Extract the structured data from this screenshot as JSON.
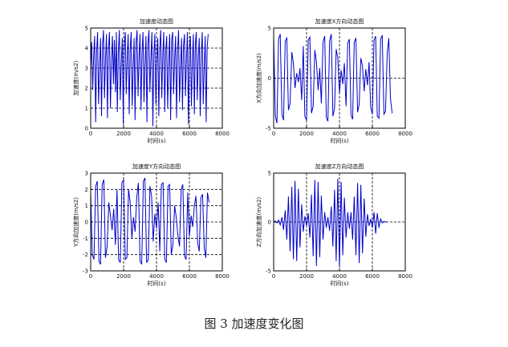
{
  "caption": "图 3  加速度变化图",
  "chart_data": [
    {
      "type": "line",
      "title": "加速度动态图",
      "xlabel": "时间(s)",
      "ylabel": "加速度(m/s2)",
      "xlim": [
        0,
        8000
      ],
      "ylim": [
        0,
        5
      ],
      "xticks": [
        0,
        2000,
        4000,
        6000,
        8000
      ],
      "yticks": [
        0,
        1,
        2,
        3,
        4,
        5
      ],
      "xtick_labels": [
        "0",
        "2000",
        "4000",
        "6000",
        "8000"
      ],
      "ytick_labels": [
        "0",
        "1",
        "2",
        "3",
        "4",
        "5"
      ],
      "grid": "dashed",
      "color": "#0000cc",
      "series": [
        {
          "x": [
            0,
            60,
            120,
            180,
            240,
            300,
            360,
            420,
            480,
            540,
            600,
            660,
            720,
            780,
            840,
            900,
            960,
            1020,
            1080,
            1140,
            1200,
            1260,
            1320,
            1380,
            1440,
            1500,
            1560,
            1620,
            1680,
            1740,
            1800,
            1860,
            1920,
            1980,
            2040,
            2100,
            2160,
            2220,
            2280,
            2340,
            2400,
            2460,
            2520,
            2580,
            2640,
            2700,
            2760,
            2820,
            2880,
            2940,
            3000,
            3060,
            3120,
            3180,
            3240,
            3300,
            3360,
            3420,
            3480,
            3540,
            3600,
            3660,
            3720,
            3780,
            3840,
            3900,
            3960,
            4020,
            4080,
            4140,
            4200,
            4260,
            4320,
            4380,
            4440,
            4500,
            4560,
            4620,
            4680,
            4740,
            4800,
            4860,
            4920,
            4980,
            5040,
            5100,
            5160,
            5220,
            5280,
            5340,
            5400,
            5460,
            5520,
            5580,
            5640,
            5700,
            5760,
            5820,
            5880,
            5940,
            6000,
            6060,
            6120,
            6180,
            6240,
            6300,
            6360,
            6420,
            6480,
            6540,
            6600,
            6660,
            6720,
            6780,
            6840,
            6900,
            6960,
            7020,
            7080,
            7140
          ],
          "y": [
            3.0,
            4.3,
            1.9,
            3.6,
            4.6,
            0.3,
            3.8,
            4.8,
            1.2,
            3.1,
            4.5,
            0.6,
            4.2,
            4.9,
            1.5,
            3.4,
            4.7,
            0.5,
            3.9,
            4.8,
            1.0,
            3.3,
            4.6,
            2.2,
            4.4,
            1.8,
            4.8,
            0.8,
            3.7,
            4.9,
            1.4,
            3.2,
            4.5,
            0.2,
            4.1,
            4.8,
            1.7,
            3.5,
            4.7,
            0.7,
            3.9,
            4.8,
            1.1,
            3.0,
            4.5,
            0.4,
            4.3,
            4.9,
            1.6,
            3.6,
            4.7,
            0.9,
            3.8,
            4.8,
            1.3,
            3.1,
            4.6,
            0.3,
            4.2,
            4.9,
            1.8,
            3.4,
            4.8,
            0.1,
            3.7,
            4.7,
            1.2,
            3.3,
            4.5,
            0.6,
            4.0,
            4.9,
            1.5,
            3.6,
            4.8,
            0.8,
            3.9,
            4.6,
            1.0,
            3.2,
            4.7,
            0.4,
            4.4,
            4.8,
            1.7,
            3.5,
            4.6,
            0.5,
            3.8,
            4.9,
            1.3,
            3.0,
            4.5,
            0.9,
            4.1,
            4.7,
            1.6,
            3.4,
            4.8,
            0.2,
            3.9,
            4.6,
            1.1,
            3.3,
            4.7,
            0.7,
            4.2,
            4.8,
            1.4,
            3.6,
            4.5,
            0.6,
            3.7,
            4.8,
            1.2,
            3.1,
            4.6,
            0.3,
            4.0,
            4.7
          ]
        }
      ]
    },
    {
      "type": "line",
      "title": "加速度X方向动态图",
      "xlabel": "时间(s)",
      "ylabel": "X方向加速度(m/s2)",
      "xlim": [
        0,
        8000
      ],
      "ylim": [
        -5,
        5
      ],
      "xticks": [
        0,
        2000,
        4000,
        6000,
        8000
      ],
      "yticks": [
        -5,
        0,
        5
      ],
      "xtick_labels": [
        "0",
        "2000",
        "4000",
        "6000",
        "8000"
      ],
      "ytick_labels": [
        "-5",
        "0",
        "5"
      ],
      "grid": "dashed",
      "color": "#0000cc",
      "series": [
        {
          "x": [
            0,
            100,
            200,
            300,
            400,
            500,
            600,
            700,
            800,
            900,
            1000,
            1100,
            1200,
            1300,
            1400,
            1500,
            1600,
            1700,
            1800,
            1900,
            2000,
            2100,
            2200,
            2300,
            2400,
            2500,
            2600,
            2700,
            2800,
            2900,
            3000,
            3100,
            3200,
            3300,
            3400,
            3500,
            3600,
            3700,
            3800,
            3900,
            4000,
            4100,
            4200,
            4300,
            4400,
            4500,
            4600,
            4700,
            4800,
            4900,
            5000,
            5100,
            5200,
            5300,
            5400,
            5500,
            5600,
            5700,
            5800,
            5900,
            6000,
            6100,
            6200,
            6300,
            6400,
            6500,
            6600,
            6700,
            6800,
            6900,
            7000,
            7100,
            7200
          ],
          "y": [
            4.2,
            -3.8,
            -4.5,
            3.9,
            4.4,
            -3.6,
            -4.2,
            3.7,
            4.0,
            -3.2,
            -2.5,
            2.6,
            1.5,
            -1.0,
            0.5,
            -0.4,
            1.0,
            -2.2,
            3.2,
            -3.8,
            -4.2,
            3.8,
            4.1,
            -3.5,
            -2.8,
            2.8,
            1.6,
            -1.2,
            1.0,
            -2.5,
            3.6,
            4.2,
            -3.9,
            -4.3,
            3.7,
            4.4,
            -3.8,
            -3.0,
            2.9,
            2.0,
            -1.5,
            0.8,
            -0.6,
            1.5,
            -2.8,
            3.5,
            3.9,
            -3.7,
            -4.1,
            3.6,
            4.0,
            -3.4,
            -2.6,
            2.0,
            1.2,
            -1.3,
            0.9,
            -0.7,
            1.6,
            -2.9,
            -3.6,
            3.8,
            4.2,
            -3.8,
            -4.0,
            3.9,
            4.3,
            -3.6,
            -3.3,
            2.5,
            4.0,
            -2.0,
            -3.5
          ]
        }
      ]
    },
    {
      "type": "line",
      "title": "加速度Y方向动态图",
      "xlabel": "时间(s)",
      "ylabel": "Y方向加速度(m/s2)",
      "xlim": [
        0,
        8000
      ],
      "ylim": [
        -3,
        3
      ],
      "xticks": [
        0,
        2000,
        4000,
        6000,
        8000
      ],
      "yticks": [
        -3,
        -2,
        -1,
        0,
        1,
        2,
        3
      ],
      "xtick_labels": [
        "0",
        "2000",
        "4000",
        "6000",
        "8000"
      ],
      "ytick_labels": [
        "-3",
        "-2",
        "-1",
        "0",
        "1",
        "2",
        "3"
      ],
      "grid": "dashed",
      "color": "#0000cc",
      "series": [
        {
          "x": [
            0,
            100,
            200,
            300,
            400,
            500,
            600,
            700,
            800,
            900,
            1000,
            1100,
            1200,
            1300,
            1400,
            1500,
            1600,
            1700,
            1800,
            1900,
            2000,
            2100,
            2200,
            2300,
            2400,
            2500,
            2600,
            2700,
            2800,
            2900,
            3000,
            3100,
            3200,
            3300,
            3400,
            3500,
            3600,
            3700,
            3800,
            3900,
            4000,
            4100,
            4200,
            4300,
            4400,
            4500,
            4600,
            4700,
            4800,
            4900,
            5000,
            5100,
            5200,
            5300,
            5400,
            5500,
            5600,
            5700,
            5800,
            5900,
            6000,
            6100,
            6200,
            6300,
            6400,
            6500,
            6600,
            6700,
            6800,
            6900,
            7000,
            7100,
            7200
          ],
          "y": [
            1.8,
            -2.0,
            -2.3,
            2.2,
            2.5,
            -2.4,
            -2.6,
            2.3,
            2.6,
            -2.2,
            -1.5,
            1.2,
            0.4,
            -0.5,
            0.8,
            -1.4,
            2.0,
            -2.3,
            -2.5,
            2.4,
            2.6,
            -2.3,
            -2.2,
            2.0,
            1.2,
            -1.0,
            0.3,
            -0.6,
            1.5,
            2.4,
            -2.4,
            -2.6,
            2.5,
            2.7,
            -2.5,
            -2.3,
            2.2,
            1.6,
            -1.2,
            0.5,
            -0.4,
            1.2,
            -1.8,
            2.3,
            2.4,
            -2.3,
            -2.5,
            2.2,
            2.3,
            -2.0,
            -1.4,
            1.0,
            0.3,
            -0.8,
            -1.5,
            2.0,
            2.3,
            -2.1,
            -2.3,
            1.8,
            -0.9,
            0.4,
            -0.3,
            1.0,
            1.6,
            -1.3,
            -1.8,
            1.5,
            1.7,
            -1.6,
            -2.2,
            1.8,
            1.2
          ]
        }
      ]
    },
    {
      "type": "line",
      "title": "加速度Z方向动态图",
      "xlabel": "时间(s)",
      "ylabel": "Z方向加速度(m/s2)",
      "xlim": [
        0,
        8000
      ],
      "ylim": [
        -5,
        5
      ],
      "xticks": [
        0,
        2000,
        4000,
        6000,
        8000
      ],
      "yticks": [
        -5,
        0,
        5
      ],
      "xtick_labels": [
        "0",
        "2000",
        "4000",
        "6000",
        "8000"
      ],
      "ytick_labels": [
        "-5",
        "0",
        "5"
      ],
      "grid": "dashed",
      "color": "#0000cc",
      "series": [
        {
          "x": [
            0,
            100,
            200,
            300,
            400,
            500,
            600,
            700,
            800,
            900,
            1000,
            1100,
            1200,
            1300,
            1400,
            1500,
            1600,
            1700,
            1800,
            1900,
            2000,
            2100,
            2200,
            2300,
            2400,
            2500,
            2600,
            2700,
            2800,
            2900,
            3000,
            3100,
            3200,
            3300,
            3400,
            3500,
            3600,
            3700,
            3800,
            3900,
            4000,
            4100,
            4200,
            4300,
            4400,
            4500,
            4600,
            4700,
            4800,
            4900,
            5000,
            5100,
            5200,
            5300,
            5400,
            5500,
            5600,
            5700,
            5800,
            5900,
            6000,
            6100,
            6200,
            6300,
            6400,
            6500,
            6600,
            6700,
            6800,
            6900
          ],
          "y": [
            0,
            0.1,
            -0.1,
            0.2,
            -0.3,
            0.5,
            -0.8,
            1.2,
            -1.8,
            2.6,
            -3.0,
            3.6,
            -3.8,
            4.2,
            -4.0,
            3.4,
            -2.6,
            1.8,
            -1.0,
            0.6,
            -0.4,
            0.9,
            -1.6,
            2.8,
            -3.5,
            4.3,
            -4.5,
            4.1,
            -3.6,
            2.7,
            -1.8,
            1.0,
            -0.6,
            0.5,
            -0.9,
            1.6,
            -2.5,
            3.3,
            -4.0,
            4.4,
            -4.6,
            4.1,
            -3.4,
            2.5,
            -1.6,
            1.0,
            -0.7,
            1.0,
            -1.8,
            2.6,
            -3.4,
            4.0,
            -4.2,
            3.8,
            -3.2,
            2.4,
            -1.5,
            0.8,
            -0.4,
            0.3,
            -0.6,
            1.0,
            -1.2,
            0.9,
            -0.6,
            0.3,
            -0.1,
            0.05,
            0,
            0
          ]
        }
      ]
    }
  ]
}
